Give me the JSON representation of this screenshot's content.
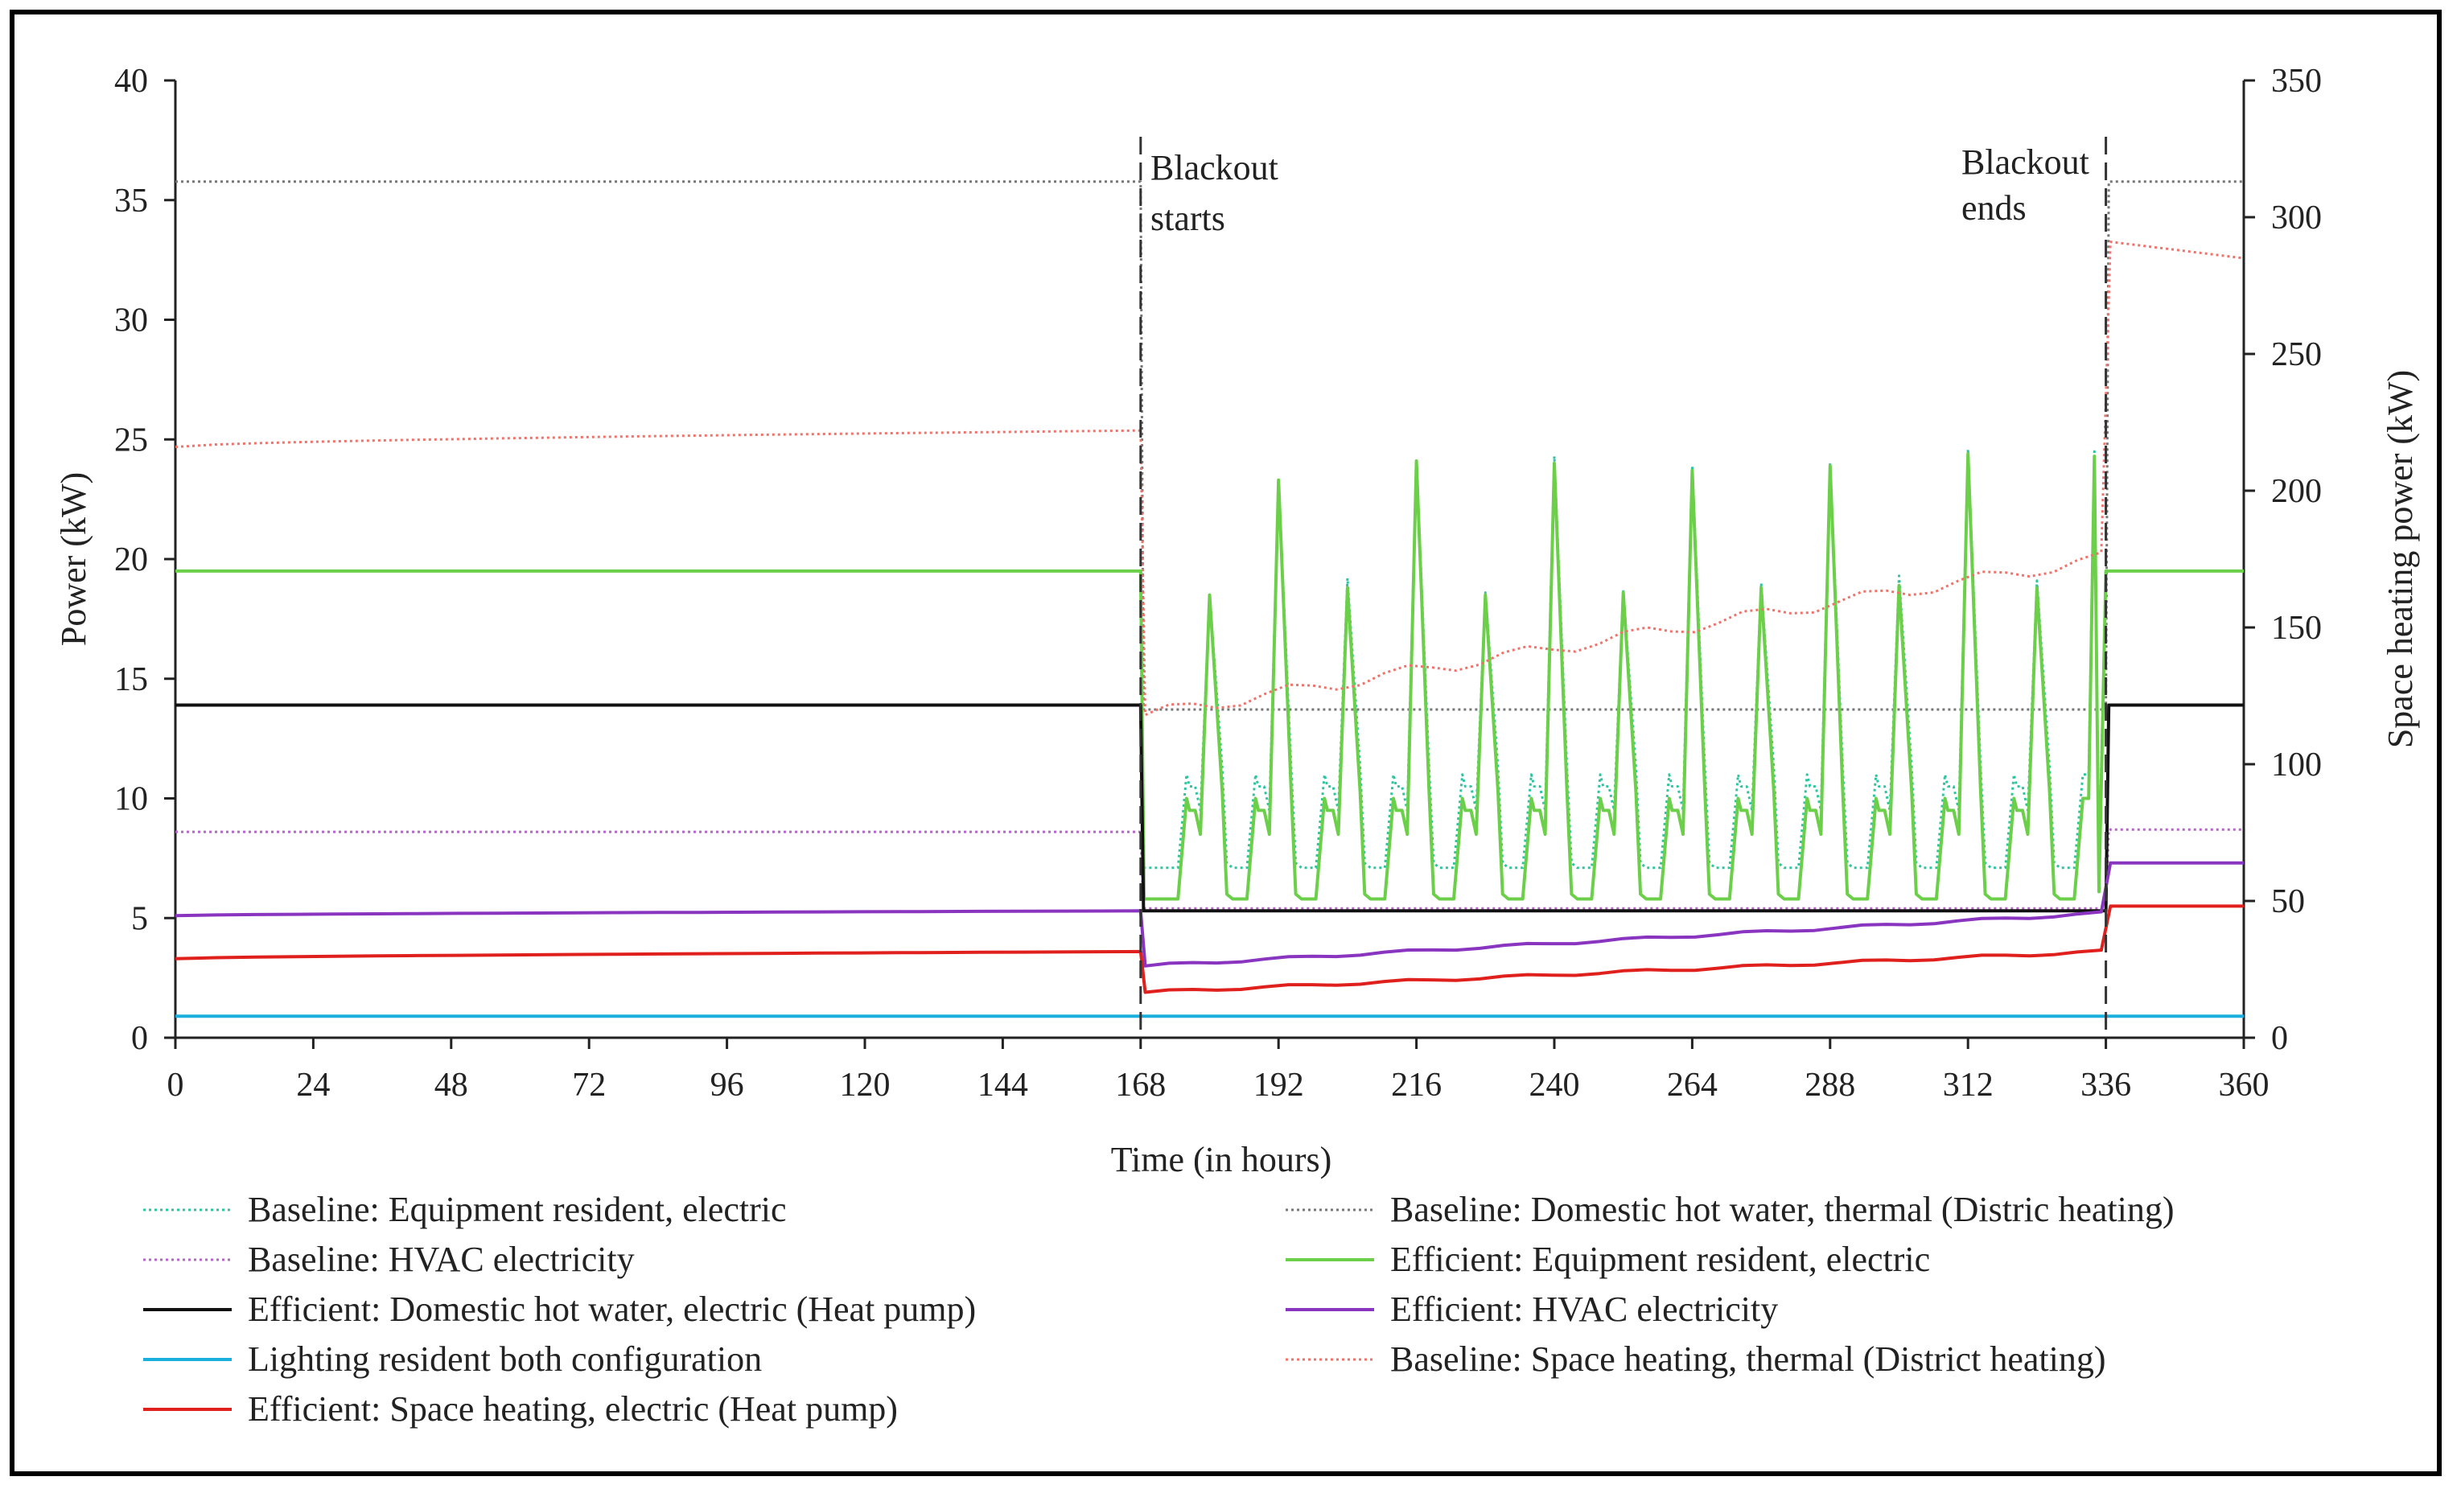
{
  "chart_data": {
    "type": "line",
    "title": "",
    "xlabel": "Time (in hours)",
    "ylabel": "Power (kW)",
    "y2label": "Space heating power (kW)",
    "xlim": [
      0,
      360
    ],
    "ylim": [
      0,
      40
    ],
    "y2lim": [
      0,
      350
    ],
    "xticks": [
      0,
      24,
      48,
      72,
      96,
      120,
      144,
      168,
      192,
      216,
      240,
      264,
      288,
      312,
      336,
      360
    ],
    "yticks": [
      0,
      5,
      10,
      15,
      20,
      25,
      30,
      35,
      40
    ],
    "y2ticks": [
      0,
      50,
      100,
      150,
      200,
      250,
      300,
      350
    ],
    "grid": false,
    "legend_position": "bottom",
    "annotations": [
      {
        "lines": [
          "Blackout",
          "starts"
        ],
        "x": 168
      },
      {
        "lines": [
          "Blackout",
          "ends"
        ],
        "x": 336
      }
    ],
    "blackout_start": 168,
    "blackout_end": 336,
    "series": [
      {
        "name": "Baseline: Equipment resident, electric",
        "axis": "left",
        "style": "dotted",
        "color": "#2ec4a0",
        "pre": 19.5,
        "post": 19.5,
        "trough": 7.1,
        "shoulder": 11.0,
        "peak_hours": [
          180,
          192,
          204,
          216,
          228,
          240,
          252,
          264,
          276,
          288,
          300,
          312,
          324,
          336
        ],
        "peaks": [
          18.5,
          23.3,
          19.2,
          24.2,
          18.6,
          24.3,
          18.7,
          23.9,
          19.0,
          24.0,
          19.3,
          24.6,
          19.1,
          24.5
        ]
      },
      {
        "name": "Baseline: Domestic hot water, thermal (Distric heating)",
        "axis": "right",
        "style": "dotted",
        "color": "#777777",
        "pre": 313,
        "blackout": 120,
        "post": 313
      },
      {
        "name": "Baseline: HVAC electricity",
        "axis": "left",
        "style": "dotted",
        "color": "#b566c9",
        "pre": 8.6,
        "blackout": 5.4,
        "post": 8.7
      },
      {
        "name": "Efficient: Equipment resident, electric",
        "axis": "left",
        "style": "solid",
        "color": "#6ccf4a",
        "pre": 19.5,
        "post": 19.5,
        "trough": 5.8,
        "shoulder": 10.0,
        "peak_hours": [
          180,
          192,
          204,
          216,
          228,
          240,
          252,
          264,
          276,
          288,
          300,
          312,
          324,
          336
        ],
        "peaks": [
          18.5,
          23.3,
          18.8,
          24.1,
          18.5,
          24.0,
          18.6,
          23.7,
          18.8,
          23.9,
          18.9,
          24.4,
          18.8,
          24.3
        ]
      },
      {
        "name": "Efficient: Domestic hot water, electric (Heat pump)",
        "axis": "left",
        "style": "solid",
        "color": "#111111",
        "pre": 13.9,
        "blackout": 5.3,
        "post": 13.9
      },
      {
        "name": "Efficient: HVAC electricity",
        "axis": "left",
        "style": "solid",
        "color": "#8a35c0",
        "pre_start": 5.1,
        "pre_end": 5.3,
        "blackout_start": 3.0,
        "blackout_end": 5.2,
        "post": 7.3
      },
      {
        "name": "Lighting resident both configuration",
        "axis": "left",
        "style": "solid",
        "color": "#1ab0de",
        "value": 0.9
      },
      {
        "name": "Baseline: Space heating, thermal (District heating)",
        "axis": "right",
        "style": "dotted",
        "color": "#f0736b",
        "pre_start": 216,
        "pre_end": 222,
        "blackout_start": 118,
        "blackout_end": 175,
        "post_start": 291,
        "post_end": 285
      },
      {
        "name": "Efficient: Space heating, electric (Heat pump)",
        "axis": "left",
        "style": "solid",
        "color": "#e0201c",
        "pre_start": 3.3,
        "pre_end": 3.6,
        "blackout_start": 1.9,
        "blackout_end": 3.6,
        "post": 5.5
      }
    ]
  }
}
